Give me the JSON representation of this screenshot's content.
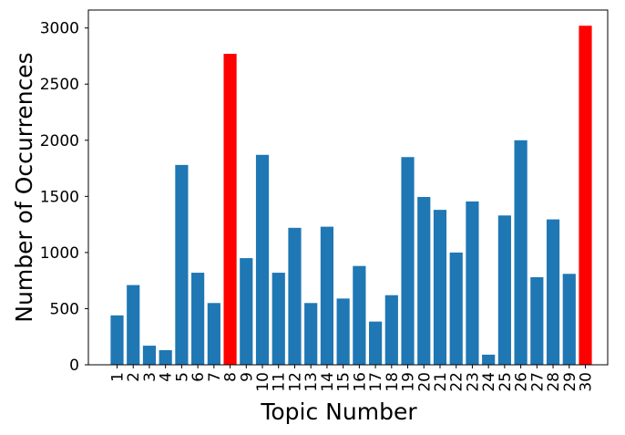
{
  "chart_data": {
    "type": "bar",
    "title": "",
    "xlabel": "Topic Number",
    "ylabel": "Number of Occurrences",
    "categories": [
      "1",
      "2",
      "3",
      "4",
      "5",
      "6",
      "7",
      "8",
      "9",
      "10",
      "11",
      "12",
      "13",
      "14",
      "15",
      "16",
      "17",
      "18",
      "19",
      "20",
      "21",
      "22",
      "23",
      "24",
      "25",
      "26",
      "27",
      "28",
      "29",
      "30"
    ],
    "values": [
      440,
      710,
      170,
      130,
      1780,
      820,
      550,
      2770,
      950,
      1870,
      820,
      1220,
      550,
      1230,
      590,
      880,
      385,
      620,
      1850,
      1495,
      1380,
      1000,
      1455,
      90,
      1330,
      2000,
      780,
      1295,
      810,
      3020
    ],
    "bar_colors": [
      "#1f77b4",
      "#1f77b4",
      "#1f77b4",
      "#1f77b4",
      "#1f77b4",
      "#1f77b4",
      "#1f77b4",
      "#ff0000",
      "#1f77b4",
      "#1f77b4",
      "#1f77b4",
      "#1f77b4",
      "#1f77b4",
      "#1f77b4",
      "#1f77b4",
      "#1f77b4",
      "#1f77b4",
      "#1f77b4",
      "#1f77b4",
      "#1f77b4",
      "#1f77b4",
      "#1f77b4",
      "#1f77b4",
      "#1f77b4",
      "#1f77b4",
      "#1f77b4",
      "#1f77b4",
      "#1f77b4",
      "#1f77b4",
      "#ff0000"
    ],
    "highlight_color": "#ff0000",
    "default_color": "#1f77b4",
    "ylim": [
      0,
      3160
    ],
    "yticks": [
      0,
      500,
      1000,
      1500,
      2000,
      2500,
      3000
    ],
    "grid": false,
    "legend": "none"
  }
}
